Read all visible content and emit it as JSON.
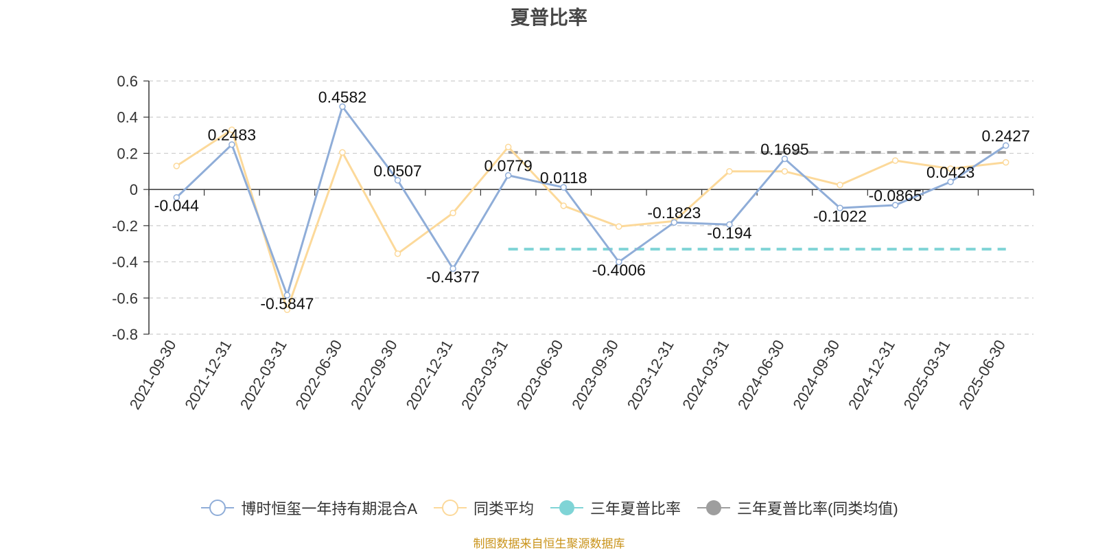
{
  "source_note": "制图数据来自恒生聚源数据库",
  "chart_data": {
    "type": "line",
    "title": "夏普比率",
    "categories": [
      "2021-09-30",
      "2021-12-31",
      "2022-03-31",
      "2022-06-30",
      "2022-09-30",
      "2022-12-31",
      "2023-03-31",
      "2023-06-30",
      "2023-09-30",
      "2023-12-31",
      "2024-03-31",
      "2024-06-30",
      "2024-09-30",
      "2024-12-31",
      "2025-03-31",
      "2025-06-30"
    ],
    "ylim": [
      -0.8,
      0.6
    ],
    "yticks": [
      0.6,
      0.4,
      0.2,
      0,
      -0.2,
      -0.4,
      -0.6,
      -0.8
    ],
    "ytick_labels": [
      "0.6",
      "0.4",
      "0.2",
      "0",
      "-0.2",
      "-0.4",
      "-0.6",
      "-0.8"
    ],
    "grid": true,
    "legend_position": "bottom",
    "series": [
      {
        "name": "博时恒玺一年持有期混合A",
        "color": "#8fadd8",
        "values": [
          -0.044,
          0.2483,
          -0.5847,
          0.4582,
          0.0507,
          -0.4377,
          0.0779,
          0.0118,
          -0.4006,
          -0.1823,
          -0.194,
          0.1695,
          -0.1022,
          -0.0865,
          0.0423,
          0.2427
        ],
        "labels": [
          "-0.044",
          "0.2483",
          "-0.5847",
          "0.4582",
          "0.0507",
          "-0.4377",
          "0.0779",
          "0.0118",
          "-0.4006",
          "-0.1823",
          "-0.194",
          "0.1695",
          "-0.1022",
          "-0.0865",
          "0.0423",
          "0.2427"
        ]
      },
      {
        "name": "同类平均",
        "color": "#fcd99a",
        "values": [
          0.13,
          0.33,
          -0.665,
          0.205,
          -0.355,
          -0.13,
          0.235,
          -0.09,
          -0.205,
          -0.175,
          0.1,
          0.1,
          0.025,
          0.16,
          0.115,
          0.15
        ]
      },
      {
        "name": "三年夏普比率",
        "color": "#7fd4d6",
        "type": "dashed-reference",
        "value": -0.33,
        "from_category": "2023-03-31",
        "to_category": "2025-06-30"
      },
      {
        "name": "三年夏普比率(同类均值)",
        "color": "#9e9e9e",
        "type": "dashed-reference",
        "value": 0.205,
        "from_category": "2023-03-31",
        "to_category": "2025-06-30"
      }
    ]
  }
}
